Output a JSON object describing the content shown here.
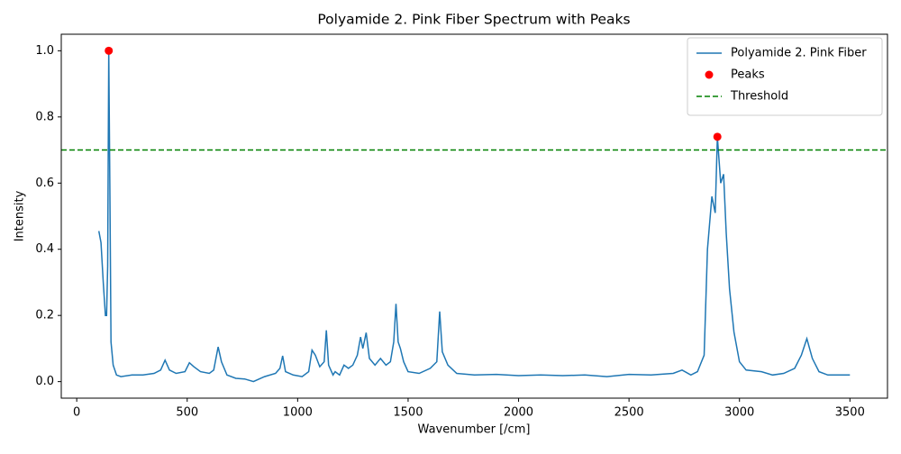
{
  "chart_data": {
    "type": "line",
    "title": "Polyamide 2. Pink Fiber Spectrum with Peaks",
    "xlabel": "Wavenumber [/cm]",
    "ylabel": "Intensity",
    "xlim": [
      -70,
      3670
    ],
    "ylim": [
      -0.05,
      1.05
    ],
    "xticks": [
      0,
      500,
      1000,
      1500,
      2000,
      2500,
      3000,
      3500
    ],
    "yticks": [
      {
        "value": 0,
        "label": "0.0"
      },
      0.2,
      0.4,
      0.6,
      0.8,
      {
        "value": 1,
        "label": "1.0"
      }
    ],
    "legend": "upper right",
    "series": [
      {
        "name": "Polyamide 2. Pink Fiber",
        "color": "#1f77b4",
        "type": "line",
        "x": [
          100,
          110,
          120,
          130,
          135,
          140,
          145,
          150,
          155,
          165,
          180,
          200,
          250,
          300,
          350,
          380,
          400,
          420,
          450,
          490,
          510,
          530,
          560,
          600,
          620,
          640,
          655,
          680,
          720,
          760,
          800,
          850,
          900,
          920,
          932,
          945,
          980,
          1020,
          1050,
          1065,
          1080,
          1100,
          1120,
          1130,
          1140,
          1160,
          1170,
          1190,
          1210,
          1230,
          1250,
          1270,
          1285,
          1295,
          1310,
          1325,
          1350,
          1375,
          1400,
          1420,
          1435,
          1445,
          1455,
          1465,
          1480,
          1500,
          1550,
          1600,
          1630,
          1643,
          1655,
          1680,
          1720,
          1800,
          1900,
          2000,
          2100,
          2200,
          2300,
          2400,
          2500,
          2600,
          2700,
          2740,
          2780,
          2810,
          2840,
          2855,
          2875,
          2890,
          2900,
          2915,
          2928,
          2940,
          2955,
          2975,
          3000,
          3030,
          3100,
          3150,
          3200,
          3250,
          3280,
          3305,
          3330,
          3360,
          3400,
          3500
        ],
        "values": [
          0.455,
          0.42,
          0.3,
          0.2,
          0.2,
          0.35,
          1.0,
          0.6,
          0.12,
          0.05,
          0.02,
          0.015,
          0.02,
          0.02,
          0.025,
          0.035,
          0.065,
          0.035,
          0.025,
          0.03,
          0.057,
          0.045,
          0.03,
          0.025,
          0.035,
          0.105,
          0.06,
          0.02,
          0.01,
          0.008,
          0.0,
          0.015,
          0.025,
          0.04,
          0.078,
          0.03,
          0.02,
          0.015,
          0.03,
          0.095,
          0.08,
          0.045,
          0.06,
          0.155,
          0.05,
          0.02,
          0.03,
          0.02,
          0.05,
          0.04,
          0.05,
          0.08,
          0.135,
          0.1,
          0.148,
          0.07,
          0.05,
          0.07,
          0.05,
          0.06,
          0.12,
          0.235,
          0.12,
          0.1,
          0.06,
          0.03,
          0.025,
          0.04,
          0.06,
          0.212,
          0.09,
          0.05,
          0.025,
          0.02,
          0.022,
          0.018,
          0.02,
          0.018,
          0.02,
          0.015,
          0.022,
          0.02,
          0.025,
          0.035,
          0.02,
          0.03,
          0.08,
          0.4,
          0.56,
          0.51,
          0.74,
          0.6,
          0.627,
          0.45,
          0.28,
          0.15,
          0.06,
          0.035,
          0.03,
          0.02,
          0.025,
          0.04,
          0.08,
          0.13,
          0.07,
          0.03,
          0.02,
          0.02
        ]
      },
      {
        "name": "Peaks",
        "color": "red",
        "type": "scatter",
        "x": [
          145,
          2900
        ],
        "values": [
          1.0,
          0.74
        ]
      }
    ],
    "hlines": [
      {
        "name": "Threshold",
        "value": 0.7,
        "color": "green",
        "linestyle": "dashed"
      }
    ]
  }
}
